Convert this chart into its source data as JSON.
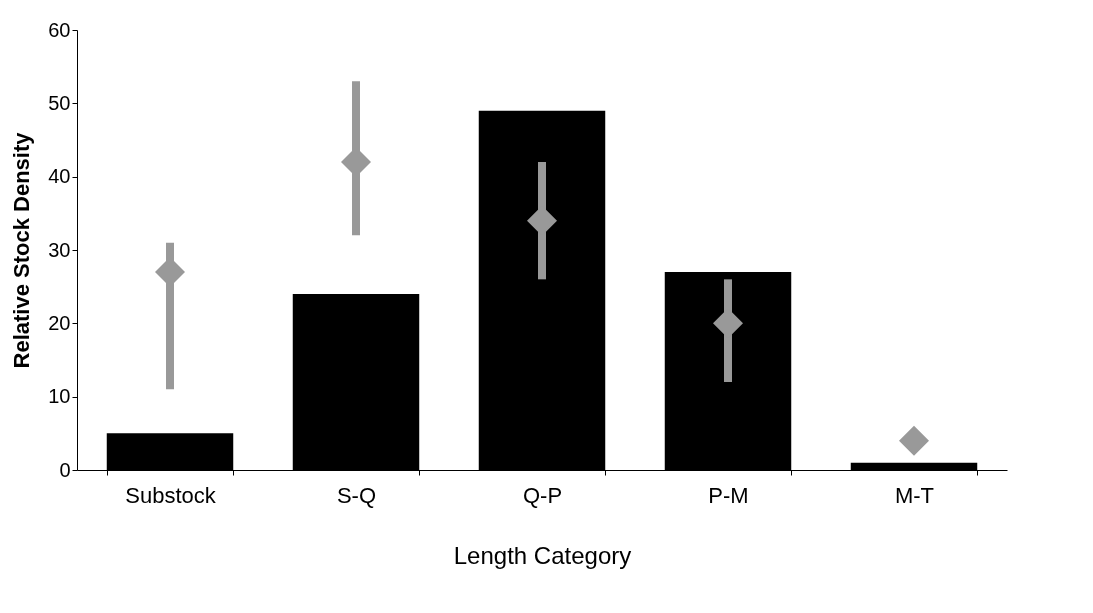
{
  "chart_data": {
    "type": "bar",
    "xlabel": "Length Category",
    "ylabel": "Relative Stock Density",
    "categories": [
      "Substock",
      "S-Q",
      "Q-P",
      "P-M",
      "M-T"
    ],
    "ylim": [
      0,
      60
    ],
    "yticks": [
      0,
      10,
      20,
      30,
      40,
      50,
      60
    ],
    "series": [
      {
        "color": "#000000",
        "values": [
          5,
          24,
          49,
          27,
          1
        ]
      },
      {
        "type": "scatter",
        "color": "#999999",
        "marker": "diamond",
        "x": [
          "Substock",
          "S-Q",
          "Q-P",
          "P-M",
          "M-T"
        ],
        "values": [
          27,
          42,
          34,
          20,
          4
        ],
        "errors": [
          [
            11,
            31
          ],
          [
            32,
            53
          ],
          [
            26,
            42
          ],
          [
            12,
            26
          ],
          null
        ]
      }
    ]
  }
}
